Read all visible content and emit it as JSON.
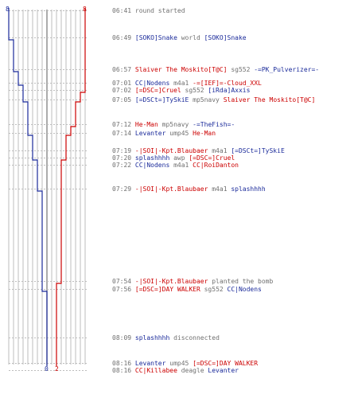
{
  "chart_data": {
    "type": "line",
    "colors": {
      "blue": "#1a2a9a",
      "red": "#cc0000",
      "gray": "#707070"
    },
    "series": [
      {
        "team": "blue",
        "start_count": "8",
        "end_count": "0",
        "steps": [
          8,
          8,
          7,
          6,
          5,
          5,
          4,
          4,
          3,
          3,
          2,
          2,
          1,
          1,
          0,
          0
        ]
      },
      {
        "team": "red",
        "start_count": "8",
        "end_count": "2",
        "steps": [
          8,
          8,
          8,
          8,
          8,
          7,
          6,
          5,
          4,
          4,
          3,
          3,
          3,
          2,
          2,
          2
        ]
      }
    ],
    "events": [
      {
        "time": "06:41",
        "parts": [
          {
            "t": "round started",
            "c": "gray"
          }
        ]
      },
      {
        "time": "06:49",
        "parts": [
          {
            "t": "[SOKO]Snake",
            "c": "blue"
          },
          {
            "t": " world ",
            "c": "gray"
          },
          {
            "t": "[SOKO]Snake",
            "c": "blue"
          }
        ]
      },
      {
        "time": "06:57",
        "parts": [
          {
            "t": "Slaiver The Moskito[T@C]",
            "c": "red"
          },
          {
            "t": " sg552 ",
            "c": "gray"
          },
          {
            "t": "-=PK_Pulverizer=-",
            "c": "blue"
          }
        ]
      },
      {
        "time": "07:01",
        "parts": [
          {
            "t": "CC|Nodens",
            "c": "blue"
          },
          {
            "t": " m4a1 ",
            "c": "gray"
          },
          {
            "t": "-=[IEF]=-Cloud_XXL",
            "c": "red"
          }
        ]
      },
      {
        "time": "07:02",
        "parts": [
          {
            "t": "[=DSC=]Cruel",
            "c": "red"
          },
          {
            "t": " sg552 ",
            "c": "gray"
          },
          {
            "t": "[iRda]Axxis",
            "c": "blue"
          }
        ]
      },
      {
        "time": "07:05",
        "parts": [
          {
            "t": "[=DSCt=]TySkiE",
            "c": "blue"
          },
          {
            "t": " mp5navy ",
            "c": "gray"
          },
          {
            "t": "Slaiver The Moskito[T@C]",
            "c": "red"
          }
        ]
      },
      {
        "time": "07:12",
        "parts": [
          {
            "t": "He-Man",
            "c": "red"
          },
          {
            "t": " mp5navy ",
            "c": "gray"
          },
          {
            "t": "-=TheFish=-",
            "c": "blue"
          }
        ]
      },
      {
        "time": "07:14",
        "parts": [
          {
            "t": "Levanter",
            "c": "blue"
          },
          {
            "t": " ump45 ",
            "c": "gray"
          },
          {
            "t": "He-Man",
            "c": "red"
          }
        ]
      },
      {
        "time": "07:19",
        "parts": [
          {
            "t": "-|SOI|-Kpt.Blaubaer",
            "c": "red"
          },
          {
            "t": " m4a1 ",
            "c": "gray"
          },
          {
            "t": "[=DSCt=]TySkiE",
            "c": "blue"
          }
        ]
      },
      {
        "time": "07:20",
        "parts": [
          {
            "t": "splashhhh",
            "c": "blue"
          },
          {
            "t": " awp ",
            "c": "gray"
          },
          {
            "t": "[=DSC=]Cruel",
            "c": "red"
          }
        ]
      },
      {
        "time": "07:22",
        "parts": [
          {
            "t": "CC|Nodens",
            "c": "blue"
          },
          {
            "t": " m4a1 ",
            "c": "gray"
          },
          {
            "t": "CC|RoiDanton",
            "c": "red"
          }
        ]
      },
      {
        "time": "07:29",
        "parts": [
          {
            "t": "-|SOI|-Kpt.Blaubaer",
            "c": "red"
          },
          {
            "t": " m4a1 ",
            "c": "gray"
          },
          {
            "t": "splashhhh",
            "c": "blue"
          }
        ]
      },
      {
        "time": "07:54",
        "parts": [
          {
            "t": "-|SOI|-Kpt.Blaubaer",
            "c": "red"
          },
          {
            "t": " planted the bomb",
            "c": "gray"
          }
        ]
      },
      {
        "time": "07:56",
        "parts": [
          {
            "t": "[=DSC=]DAY WALKER",
            "c": "red"
          },
          {
            "t": " sg552 ",
            "c": "gray"
          },
          {
            "t": "CC|Nodens",
            "c": "blue"
          }
        ]
      },
      {
        "time": "08:09",
        "parts": [
          {
            "t": "splashhhh",
            "c": "blue"
          },
          {
            "t": " disconnected",
            "c": "gray"
          }
        ]
      },
      {
        "time": "08:16",
        "parts": [
          {
            "t": "Levanter",
            "c": "blue"
          },
          {
            "t": " ump45 ",
            "c": "gray"
          },
          {
            "t": "[=DSC=]DAY WALKER",
            "c": "red"
          }
        ]
      },
      {
        "time": "08:16",
        "parts": [
          {
            "t": "CC|Killabee",
            "c": "red"
          },
          {
            "t": " deagle ",
            "c": "gray"
          },
          {
            "t": "Levanter",
            "c": "blue"
          }
        ]
      }
    ]
  }
}
